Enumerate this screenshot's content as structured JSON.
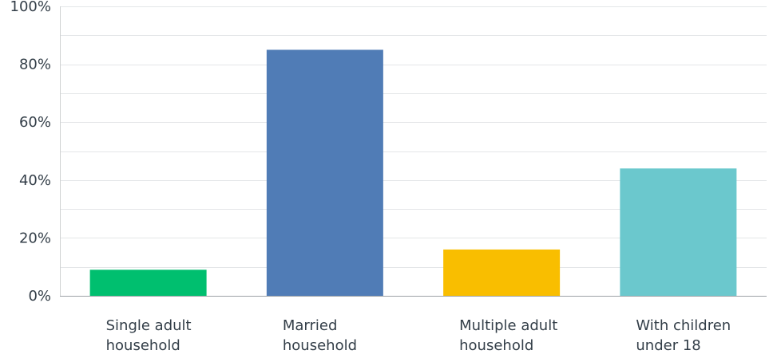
{
  "chart_data": {
    "type": "bar",
    "title": "",
    "xlabel": "",
    "ylabel": "",
    "ylim": [
      0,
      100
    ],
    "yticks": [
      0,
      20,
      40,
      60,
      80,
      100
    ],
    "ytick_labels": [
      "0%",
      "20%",
      "40%",
      "60%",
      "80%",
      "100%"
    ],
    "minor_gridlines_every": 10,
    "grid": true,
    "legend": "none",
    "categories": [
      [
        "Single adult",
        "household"
      ],
      [
        "Married",
        "household"
      ],
      [
        "Multiple adult",
        "household"
      ],
      [
        "With children",
        "under 18"
      ]
    ],
    "values": [
      9,
      85,
      16,
      44
    ],
    "colors": [
      "#00bf6f",
      "#507cb6",
      "#f9be00",
      "#6bc8cd"
    ]
  }
}
